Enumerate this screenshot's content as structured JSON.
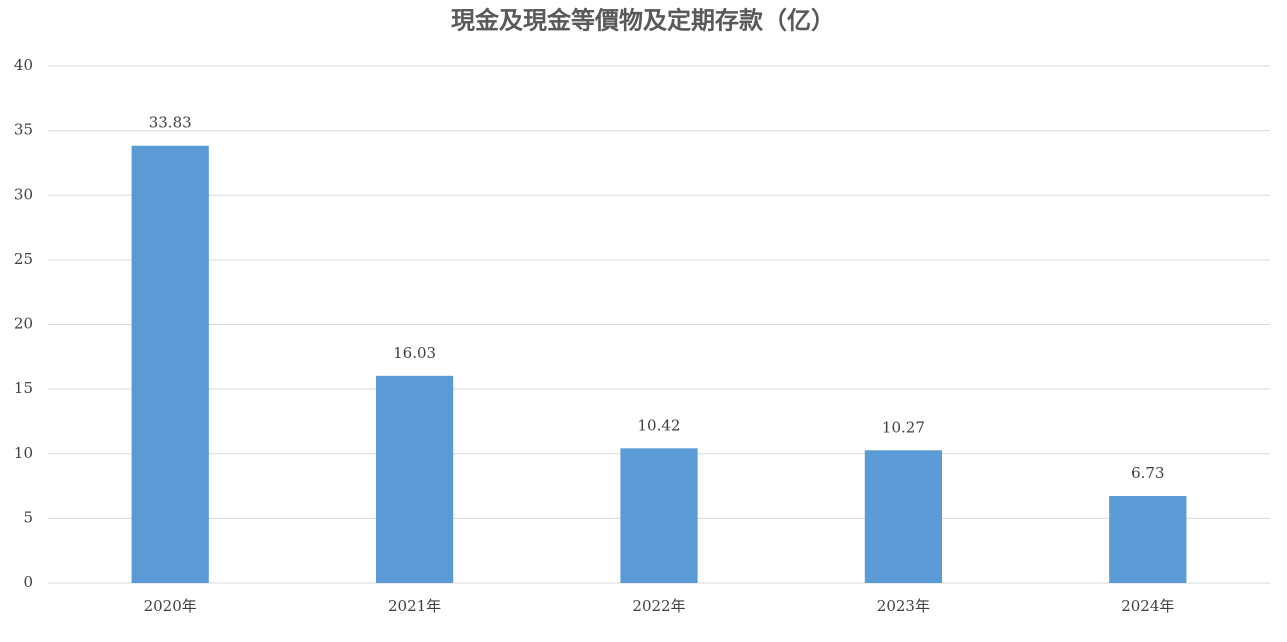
{
  "chart_data": {
    "type": "bar",
    "title": "現金及現金等價物及定期存款（亿）",
    "categories": [
      "2020年",
      "2021年",
      "2022年",
      "2023年",
      "2024年"
    ],
    "values": [
      33.83,
      16.03,
      10.42,
      10.27,
      6.73
    ],
    "color": "#5b9bd5",
    "ylim": [
      0,
      40
    ],
    "yticks": [
      0,
      5,
      10,
      15,
      20,
      25,
      30,
      35,
      40
    ],
    "grid": true
  }
}
